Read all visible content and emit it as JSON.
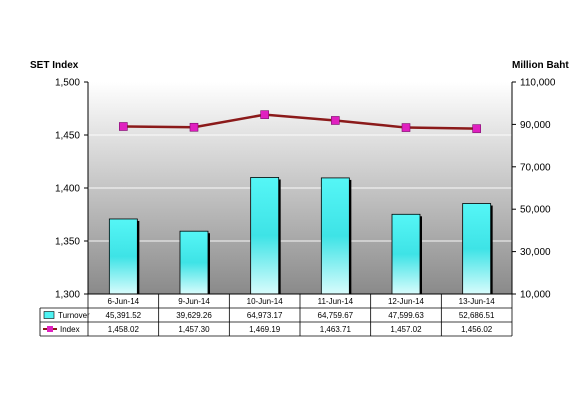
{
  "chart_data": {
    "type": "bar",
    "categories": [
      "6-Jun-14",
      "9-Jun-14",
      "10-Jun-14",
      "11-Jun-14",
      "12-Jun-14",
      "13-Jun-14"
    ],
    "series": [
      {
        "name": "Turnover",
        "type": "bar",
        "axis": "right",
        "values": [
          45391.52,
          39629.26,
          64973.17,
          64759.67,
          47599.63,
          52686.51
        ],
        "labels": [
          "45,391.52",
          "39,629.26",
          "64,973.17",
          "64,759.67",
          "47,599.63",
          "52,686.51"
        ],
        "color": "#4FF3F3"
      },
      {
        "name": "Index",
        "type": "line",
        "axis": "left",
        "values": [
          1458.02,
          1457.3,
          1469.19,
          1463.71,
          1457.02,
          1456.02
        ],
        "labels": [
          "1,458.02",
          "1,457.30",
          "1,469.19",
          "1,463.71",
          "1,457.02",
          "1,456.02"
        ],
        "color": "#8B1A1A",
        "marker_color": "#E020C0"
      }
    ],
    "ylabel": "SET Index",
    "ylabel_right": "Million Baht",
    "ylim": [
      1300,
      1500
    ],
    "yticks": [
      "1,300",
      "1,350",
      "1,400",
      "1,450",
      "1,500"
    ],
    "ylim_right": [
      10000,
      110000
    ],
    "yticks_right": [
      "10,000",
      "30,000",
      "50,000",
      "70,000",
      "90,000",
      "110,000"
    ],
    "grid": true,
    "legend": "data-table"
  }
}
